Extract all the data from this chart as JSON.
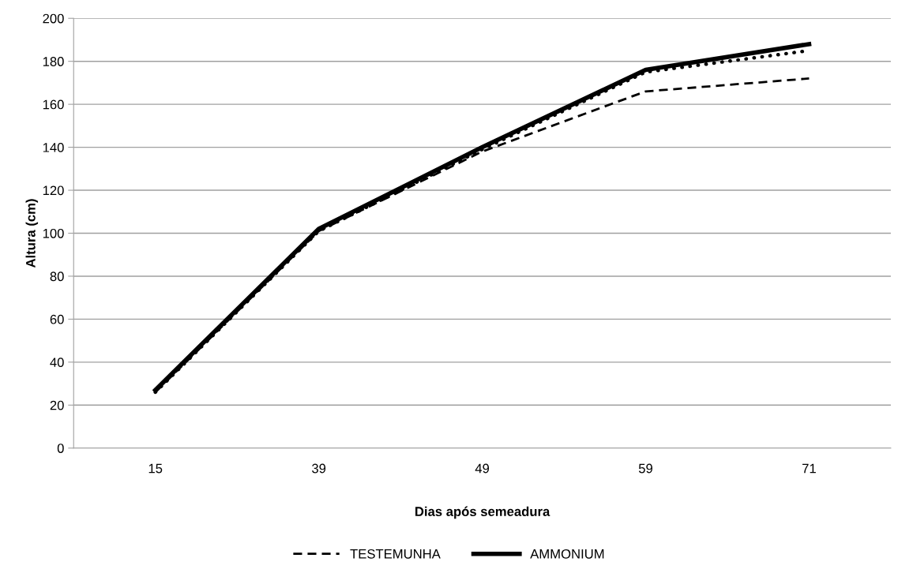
{
  "chart_data": {
    "type": "line",
    "xlabel": "Dias após semeadura",
    "ylabel": "Altura (cm)",
    "categories": [
      "15",
      "39",
      "49",
      "59",
      "71"
    ],
    "series": [
      {
        "name": "TESTEMUNHA",
        "color": "#000000",
        "values": [
          26,
          101,
          138,
          166,
          172
        ],
        "line_style": "dashed"
      },
      {
        "color": "#000000",
        "values": [
          26,
          101,
          139,
          175,
          185
        ],
        "line_style": "dotted"
      },
      {
        "name": "AMMONIUM",
        "color": "#000000",
        "values": [
          27,
          102,
          140,
          176,
          188
        ],
        "line_style": "solid"
      }
    ],
    "ylim": [
      0,
      200
    ],
    "yticks": [
      0,
      20,
      40,
      60,
      80,
      100,
      120,
      140,
      160,
      180,
      200
    ],
    "grid": "y",
    "legend": "bottom",
    "marker": "none"
  }
}
